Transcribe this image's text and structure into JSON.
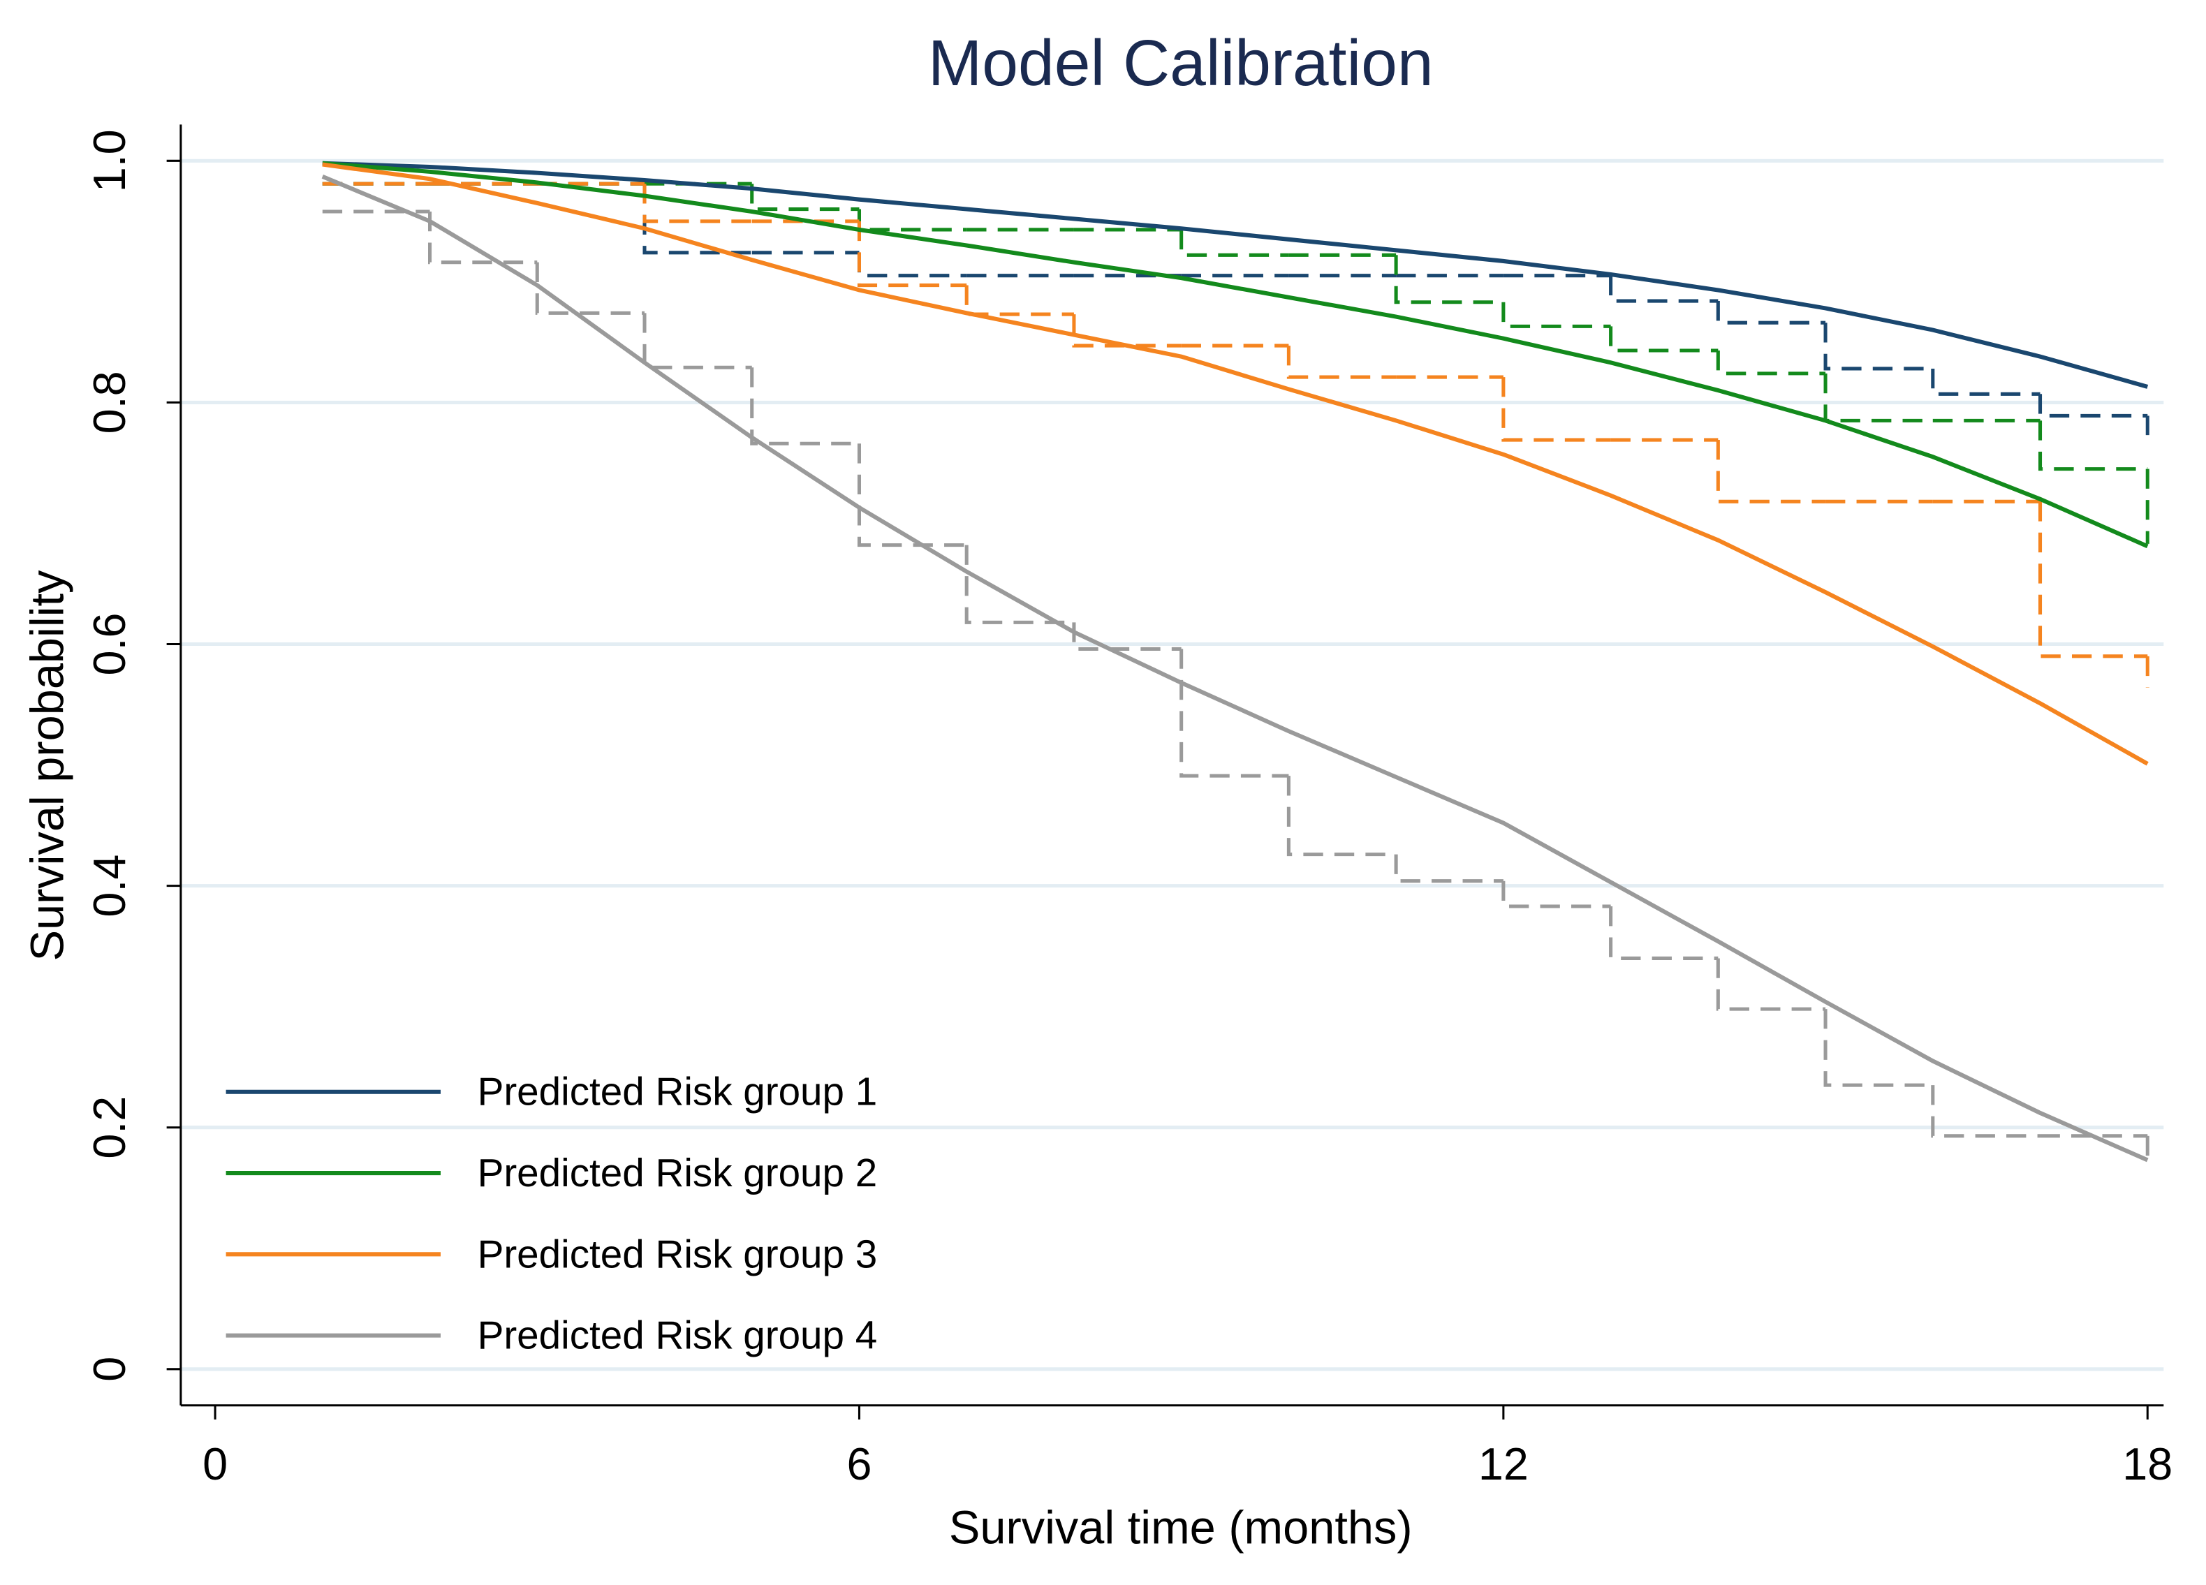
{
  "chart_data": {
    "type": "line",
    "title": "Model Calibration",
    "x_label": "Survival time (months)",
    "y_label": "Survival probability",
    "x": [
      1,
      2,
      3,
      4,
      5,
      6,
      7,
      8,
      9,
      10,
      11,
      12,
      13,
      14,
      15,
      16,
      17,
      18
    ],
    "series": [
      {
        "name": "Predicted Risk group 1",
        "color": "#1a476f",
        "values": [
          0.998,
          0.995,
          0.99,
          0.984,
          0.977,
          0.968,
          0.96,
          0.952,
          0.944,
          0.935,
          0.926,
          0.917,
          0.906,
          0.893,
          0.878,
          0.86,
          0.838,
          0.813
        ]
      },
      {
        "name": "Predicted Risk group 2",
        "color": "#138a1c",
        "values": [
          0.998,
          0.991,
          0.982,
          0.971,
          0.958,
          0.943,
          0.93,
          0.916,
          0.903,
          0.887,
          0.871,
          0.853,
          0.833,
          0.81,
          0.785,
          0.755,
          0.72,
          0.681
        ]
      },
      {
        "name": "Predicted Risk group 3",
        "color": "#f5841f",
        "values": [
          0.997,
          0.985,
          0.965,
          0.944,
          0.918,
          0.893,
          0.874,
          0.856,
          0.838,
          0.811,
          0.785,
          0.757,
          0.723,
          0.686,
          0.643,
          0.598,
          0.551,
          0.501
        ]
      },
      {
        "name": "Predicted Risk group 4",
        "color": "#9a9a9a",
        "values": [
          0.987,
          0.95,
          0.897,
          0.833,
          0.771,
          0.713,
          0.66,
          0.61,
          0.568,
          0.528,
          0.49,
          0.452,
          0.403,
          0.354,
          0.304,
          0.255,
          0.212,
          0.173
        ]
      },
      {
        "color": "#1a476f",
        "dashed": true,
        "step": true,
        "values": [
          0.981,
          0.981,
          0.981,
          0.924,
          0.924,
          0.905,
          0.905,
          0.905,
          0.905,
          0.905,
          0.905,
          0.905,
          0.884,
          0.866,
          0.828,
          0.807,
          0.789,
          0.773
        ]
      },
      {
        "color": "#138a1c",
        "dashed": true,
        "step": true,
        "values": [
          0.981,
          0.981,
          0.981,
          0.981,
          0.96,
          0.943,
          0.943,
          0.943,
          0.922,
          0.922,
          0.883,
          0.863,
          0.843,
          0.824,
          0.785,
          0.785,
          0.745,
          0.683
        ]
      },
      {
        "color": "#f5841f",
        "dashed": true,
        "step": true,
        "values": [
          0.981,
          0.981,
          0.981,
          0.95,
          0.95,
          0.897,
          0.873,
          0.847,
          0.847,
          0.821,
          0.821,
          0.769,
          0.769,
          0.718,
          0.718,
          0.718,
          0.59,
          0.564
        ]
      },
      {
        "color": "#9a9a9a",
        "dashed": true,
        "step": true,
        "values": [
          0.958,
          0.916,
          0.874,
          0.829,
          0.766,
          0.682,
          0.618,
          0.596,
          0.491,
          0.426,
          0.404,
          0.383,
          0.34,
          0.298,
          0.235,
          0.193,
          0.193,
          0.173
        ]
      }
    ],
    "xlim": [
      -0.32,
      18.15
    ],
    "ylim": [
      -0.03,
      1.03
    ],
    "xticks": [
      0,
      6,
      12,
      18
    ],
    "yticks": [
      0,
      0.2,
      0.4,
      0.6,
      0.8,
      {
        "value": 1,
        "label": "1.0"
      }
    ],
    "grid": true,
    "grid_color": "#e3edf3",
    "title_color": "#1a2a50",
    "legend": "lower left"
  }
}
